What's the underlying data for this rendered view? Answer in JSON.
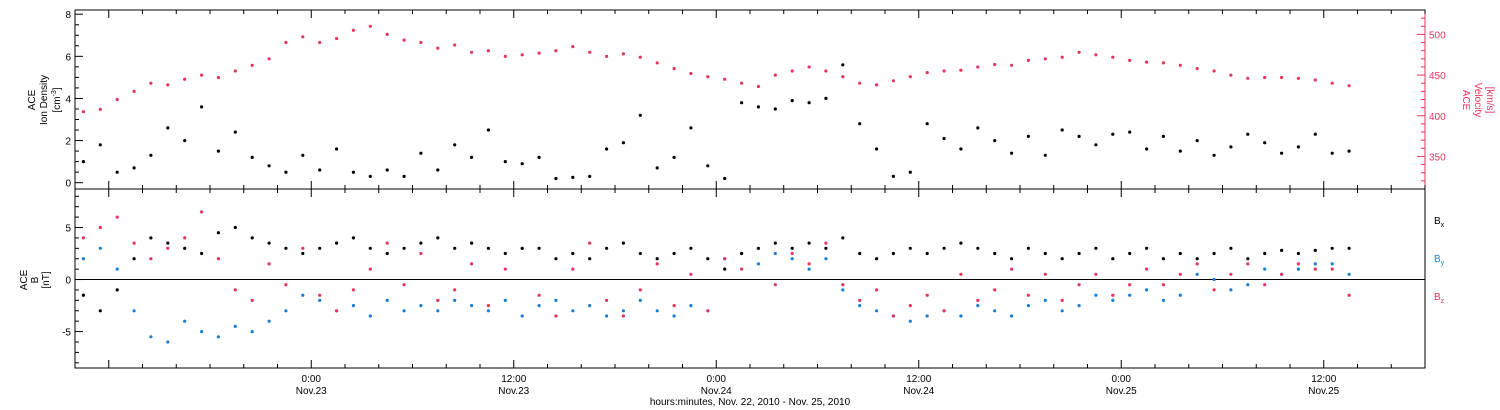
{
  "colors": {
    "density": "#000000",
    "velocity": "#e8345e",
    "bx": "#000000",
    "by": "#1a7fd4",
    "bz": "#e8345e",
    "axis": "#000000"
  },
  "x_axis": {
    "label": "hours:minutes, Nov. 22, 2010 - Nov. 25, 2010",
    "range_hours": [
      -14,
      66
    ],
    "ticks": [
      {
        "hours": 0,
        "time": "0:00",
        "date": "Nov.23"
      },
      {
        "hours": 12,
        "time": "12:00",
        "date": "Nov.23"
      },
      {
        "hours": 24,
        "time": "0:00",
        "date": "Nov.24"
      },
      {
        "hours": 36,
        "time": "12:00",
        "date": "Nov.24"
      },
      {
        "hours": 48,
        "time": "0:00",
        "date": "Nov.25"
      },
      {
        "hours": 60,
        "time": "12:00",
        "date": "Nov.25"
      }
    ]
  },
  "chart_data": [
    {
      "type": "scatter",
      "left_axis": {
        "label_lines": [
          "ACE",
          "Ion Density"
        ],
        "unit_prefix": "[cm",
        "unit_sup": "-3",
        "unit_suffix": "]",
        "ylim": [
          -0.3,
          8.2
        ],
        "ticks": [
          0,
          2,
          4,
          6,
          8
        ]
      },
      "right_axis": {
        "label_lines": [
          "ACE",
          "Velocity"
        ],
        "unit": "[km/s]",
        "ylim": [
          310,
          530
        ],
        "ticks": [
          350,
          400,
          450,
          500
        ]
      },
      "series": [
        {
          "name": "density",
          "axis": "left",
          "x_hours": [
            -13.5,
            -12.5,
            -11.5,
            -10.5,
            -9.5,
            -8.5,
            -7.5,
            -6.5,
            -5.5,
            -4.5,
            -3.5,
            -2.5,
            -1.5,
            -0.5,
            0.5,
            1.5,
            2.5,
            3.5,
            4.5,
            5.5,
            6.5,
            7.5,
            8.5,
            9.5,
            10.5,
            11.5,
            12.5,
            13.5,
            14.5,
            15.5,
            16.5,
            17.5,
            18.5,
            19.5,
            20.5,
            21.5,
            22.5,
            23.5,
            24.5,
            25.5,
            26.5,
            27.5,
            28.5,
            29.5,
            30.5,
            31.5,
            32.5,
            33.5,
            34.5,
            35.5,
            36.5,
            37.5,
            38.5,
            39.5,
            40.5,
            41.5,
            42.5,
            43.5,
            44.5,
            45.5,
            46.5,
            47.5,
            48.5,
            49.5,
            50.5,
            51.5,
            52.5,
            53.5,
            54.5,
            55.5,
            56.5,
            57.5,
            58.5,
            59.5,
            60.5,
            61.5
          ],
          "values": [
            1.0,
            1.8,
            0.5,
            0.7,
            1.3,
            2.6,
            2.0,
            3.6,
            1.5,
            2.4,
            1.2,
            0.8,
            0.5,
            1.3,
            0.6,
            1.6,
            0.5,
            0.3,
            0.6,
            0.3,
            1.4,
            0.6,
            1.8,
            1.2,
            2.5,
            1.0,
            0.9,
            1.2,
            0.2,
            0.25,
            0.3,
            1.6,
            1.9,
            3.2,
            0.7,
            1.2,
            2.6,
            0.8,
            0.2,
            3.8,
            3.6,
            3.5,
            3.9,
            3.8,
            4.0,
            5.6,
            2.8,
            1.6,
            0.3,
            0.5,
            2.8,
            2.1,
            1.6,
            2.6,
            2.0,
            1.4,
            2.2,
            1.3,
            2.5,
            2.2,
            1.8,
            2.3,
            2.4,
            1.6,
            2.2,
            1.5,
            2.0,
            1.3,
            1.7,
            2.3,
            1.9,
            1.4,
            1.7,
            2.3,
            1.4,
            1.5
          ]
        },
        {
          "name": "velocity",
          "axis": "right",
          "x_hours": [
            -13.5,
            -12.5,
            -11.5,
            -10.5,
            -9.5,
            -8.5,
            -7.5,
            -6.5,
            -5.5,
            -4.5,
            -3.5,
            -2.5,
            -1.5,
            -0.5,
            0.5,
            1.5,
            2.5,
            3.5,
            4.5,
            5.5,
            6.5,
            7.5,
            8.5,
            9.5,
            10.5,
            11.5,
            12.5,
            13.5,
            14.5,
            15.5,
            16.5,
            17.5,
            18.5,
            19.5,
            20.5,
            21.5,
            22.5,
            23.5,
            24.5,
            25.5,
            26.5,
            27.5,
            28.5,
            29.5,
            30.5,
            31.5,
            32.5,
            33.5,
            34.5,
            35.5,
            36.5,
            37.5,
            38.5,
            39.5,
            40.5,
            41.5,
            42.5,
            43.5,
            44.5,
            45.5,
            46.5,
            47.5,
            48.5,
            49.5,
            50.5,
            51.5,
            52.5,
            53.5,
            54.5,
            55.5,
            56.5,
            57.5,
            58.5,
            59.5,
            60.5,
            61.5
          ],
          "values": [
            405,
            408,
            420,
            430,
            440,
            438,
            445,
            450,
            447,
            455,
            462,
            470,
            490,
            497,
            490,
            495,
            505,
            510,
            500,
            493,
            490,
            483,
            487,
            478,
            480,
            473,
            475,
            477,
            480,
            485,
            478,
            473,
            476,
            472,
            465,
            458,
            452,
            448,
            445,
            440,
            436,
            450,
            455,
            460,
            455,
            448,
            440,
            438,
            443,
            448,
            453,
            455,
            456,
            460,
            463,
            462,
            468,
            470,
            472,
            478,
            475,
            472,
            468,
            466,
            465,
            462,
            458,
            455,
            450,
            446,
            447,
            447,
            446,
            444,
            440,
            437
          ]
        }
      ]
    },
    {
      "type": "scatter",
      "left_axis": {
        "label_lines": [
          "ACE",
          "B"
        ],
        "unit": "[nT]",
        "ylim": [
          -8.5,
          8.7
        ],
        "ticks": [
          -5,
          0,
          5
        ]
      },
      "zero_line": true,
      "series": [
        {
          "name": "B",
          "subscript": "x",
          "x_hours": [
            -13.5,
            -12.5,
            -11.5,
            -10.5,
            -9.5,
            -8.5,
            -7.5,
            -6.5,
            -5.5,
            -4.5,
            -3.5,
            -2.5,
            -1.5,
            -0.5,
            0.5,
            1.5,
            2.5,
            3.5,
            4.5,
            5.5,
            6.5,
            7.5,
            8.5,
            9.5,
            10.5,
            11.5,
            12.5,
            13.5,
            14.5,
            15.5,
            16.5,
            17.5,
            18.5,
            19.5,
            20.5,
            21.5,
            22.5,
            23.5,
            24.5,
            25.5,
            26.5,
            27.5,
            28.5,
            29.5,
            30.5,
            31.5,
            32.5,
            33.5,
            34.5,
            35.5,
            36.5,
            37.5,
            38.5,
            39.5,
            40.5,
            41.5,
            42.5,
            43.5,
            44.5,
            45.5,
            46.5,
            47.5,
            48.5,
            49.5,
            50.5,
            51.5,
            52.5,
            53.5,
            54.5,
            55.5,
            56.5,
            57.5,
            58.5,
            59.5,
            60.5,
            61.5
          ],
          "values": [
            -1.5,
            -3.0,
            -1.0,
            2.0,
            4.0,
            3.5,
            3.0,
            2.5,
            4.5,
            5.0,
            4.0,
            3.5,
            3.0,
            2.5,
            3.0,
            3.5,
            4.0,
            3.0,
            2.5,
            3.0,
            3.5,
            4.0,
            3.0,
            3.5,
            3.0,
            2.5,
            3.0,
            3.0,
            2.0,
            2.5,
            2.0,
            3.0,
            3.5,
            2.5,
            2.0,
            2.5,
            3.0,
            2.0,
            1.0,
            2.5,
            3.0,
            3.5,
            3.0,
            3.5,
            3.0,
            4.0,
            2.5,
            2.0,
            2.5,
            3.0,
            2.5,
            3.0,
            3.5,
            3.0,
            2.5,
            2.0,
            3.0,
            2.5,
            2.0,
            2.5,
            3.0,
            2.0,
            2.5,
            3.0,
            2.0,
            2.5,
            2.0,
            2.5,
            3.0,
            2.0,
            2.5,
            2.8,
            2.5,
            2.8,
            3.0,
            3.0
          ]
        },
        {
          "name": "B",
          "subscript": "y",
          "x_hours": [
            -13.5,
            -12.5,
            -11.5,
            -10.5,
            -9.5,
            -8.5,
            -7.5,
            -6.5,
            -5.5,
            -4.5,
            -3.5,
            -2.5,
            -1.5,
            -0.5,
            0.5,
            1.5,
            2.5,
            3.5,
            4.5,
            5.5,
            6.5,
            7.5,
            8.5,
            9.5,
            10.5,
            11.5,
            12.5,
            13.5,
            14.5,
            15.5,
            16.5,
            17.5,
            18.5,
            19.5,
            20.5,
            21.5,
            22.5,
            23.5,
            24.5,
            25.5,
            26.5,
            27.5,
            28.5,
            29.5,
            30.5,
            31.5,
            32.5,
            33.5,
            34.5,
            35.5,
            36.5,
            37.5,
            38.5,
            39.5,
            40.5,
            41.5,
            42.5,
            43.5,
            44.5,
            45.5,
            46.5,
            47.5,
            48.5,
            49.5,
            50.5,
            51.5,
            52.5,
            53.5,
            54.5,
            55.5,
            56.5,
            57.5,
            58.5,
            59.5,
            60.5,
            61.5
          ],
          "values": [
            2.0,
            3.0,
            1.0,
            -3.0,
            -5.5,
            -6.0,
            -4.0,
            -5.0,
            -5.5,
            -4.5,
            -5.0,
            -4.0,
            -3.0,
            -1.5,
            -2.0,
            -3.0,
            -2.5,
            -3.5,
            -2.0,
            -3.0,
            -2.5,
            -3.0,
            -2.0,
            -2.5,
            -3.0,
            -2.0,
            -3.5,
            -2.5,
            -2.0,
            -3.0,
            -2.5,
            -3.5,
            -3.0,
            -2.0,
            -3.0,
            -3.5,
            -2.5,
            -3.0,
            2.0,
            2.5,
            1.5,
            2.5,
            2.0,
            1.0,
            2.0,
            -1.0,
            -2.5,
            -3.0,
            -3.5,
            -4.0,
            -3.5,
            -3.0,
            -3.5,
            -2.5,
            -3.0,
            -3.5,
            -2.5,
            -2.0,
            -3.0,
            -2.5,
            -1.5,
            -2.0,
            -1.5,
            -1.0,
            -2.0,
            -1.5,
            0.5,
            0.0,
            -1.0,
            -0.5,
            1.0,
            0.5,
            1.0,
            1.5,
            1.5,
            0.5
          ]
        },
        {
          "name": "B",
          "subscript": "z",
          "x_hours": [
            -13.5,
            -12.5,
            -11.5,
            -10.5,
            -9.5,
            -8.5,
            -7.5,
            -6.5,
            -5.5,
            -4.5,
            -3.5,
            -2.5,
            -1.5,
            -0.5,
            0.5,
            1.5,
            2.5,
            3.5,
            4.5,
            5.5,
            6.5,
            7.5,
            8.5,
            9.5,
            10.5,
            11.5,
            12.5,
            13.5,
            14.5,
            15.5,
            16.5,
            17.5,
            18.5,
            19.5,
            20.5,
            21.5,
            22.5,
            23.5,
            24.5,
            25.5,
            26.5,
            27.5,
            28.5,
            29.5,
            30.5,
            31.5,
            32.5,
            33.5,
            34.5,
            35.5,
            36.5,
            37.5,
            38.5,
            39.5,
            40.5,
            41.5,
            42.5,
            43.5,
            44.5,
            45.5,
            46.5,
            47.5,
            48.5,
            49.5,
            50.5,
            51.5,
            52.5,
            53.5,
            54.5,
            55.5,
            56.5,
            57.5,
            58.5,
            59.5,
            60.5,
            61.5
          ],
          "values": [
            4.0,
            5.0,
            6.0,
            3.5,
            2.0,
            3.0,
            4.0,
            6.5,
            2.0,
            -1.0,
            -2.0,
            1.5,
            -0.5,
            3.0,
            -1.5,
            -3.0,
            -1.0,
            1.0,
            3.5,
            -0.5,
            2.5,
            -2.0,
            -1.0,
            1.5,
            -2.5,
            1.0,
            3.0,
            -1.5,
            -3.5,
            1.0,
            3.5,
            -2.0,
            -3.5,
            -1.0,
            1.5,
            -2.5,
            0.5,
            -3.0,
            2.0,
            1.0,
            3.0,
            -0.5,
            2.5,
            1.5,
            3.5,
            -0.5,
            -2.0,
            -1.0,
            -3.5,
            -2.5,
            -1.5,
            -3.0,
            0.5,
            -2.0,
            -1.0,
            1.0,
            -1.5,
            0.5,
            -2.0,
            -0.5,
            0.5,
            -1.5,
            -0.5,
            1.0,
            -0.5,
            0.5,
            1.5,
            -1.0,
            0.5,
            1.5,
            -0.5,
            0.5,
            1.5,
            1.0,
            1.0,
            -1.5
          ]
        }
      ]
    }
  ]
}
